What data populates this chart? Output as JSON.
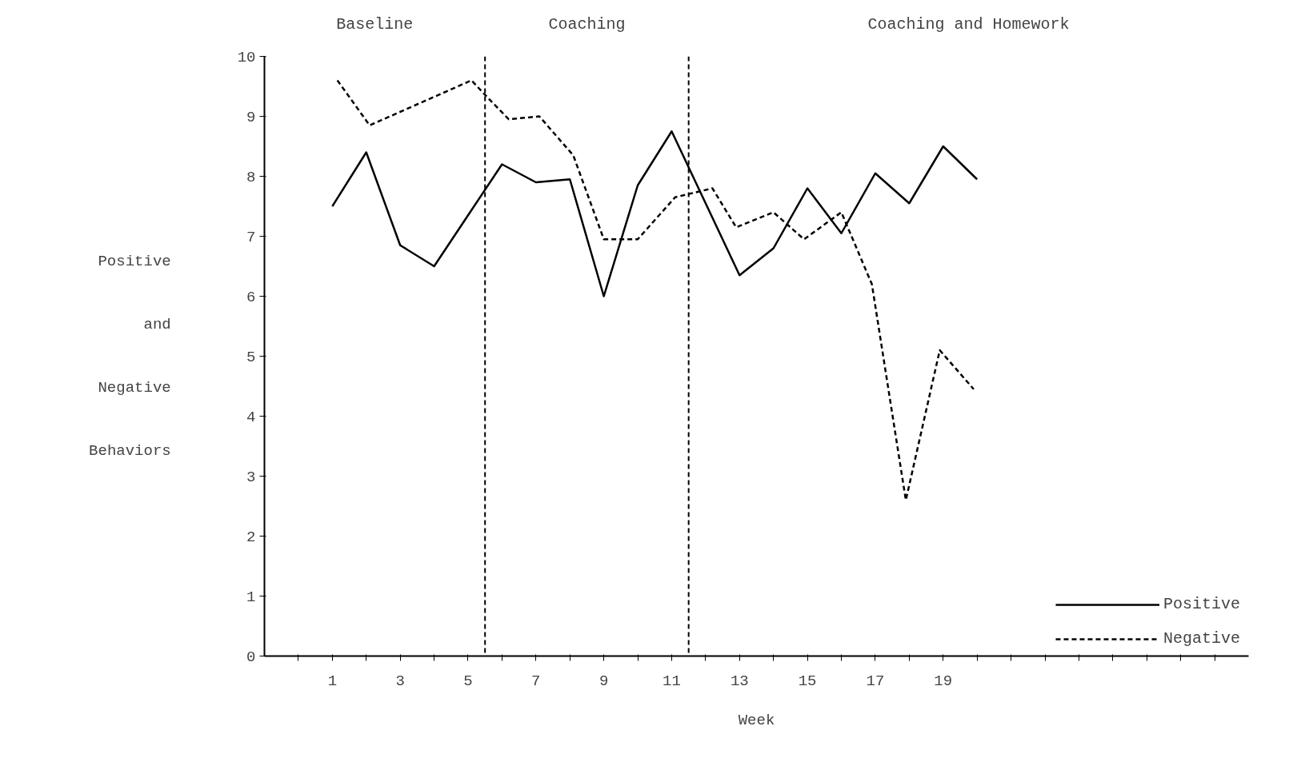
{
  "chart_data": {
    "type": "line",
    "xlabel": "Week",
    "ylabel": "Positive and Negative Behaviors",
    "annotations": [
      "Baseline",
      "Coaching",
      "Coaching and Homework"
    ],
    "xlim": [
      -1,
      28
    ],
    "ylim": [
      0,
      10
    ],
    "xticks": [
      {
        "value": 0,
        "label": null
      },
      1,
      {
        "value": 2,
        "label": null
      },
      3,
      {
        "value": 4,
        "label": null
      },
      5,
      {
        "value": 6,
        "label": null
      },
      7,
      {
        "value": 8,
        "label": null
      },
      9,
      {
        "value": 10,
        "label": null
      },
      11,
      {
        "value": 12,
        "label": null
      },
      13,
      {
        "value": 14,
        "label": null
      },
      15,
      {
        "value": 16,
        "label": null
      },
      17,
      {
        "value": 18,
        "label": null
      },
      19,
      {
        "value": 20,
        "label": null
      },
      {
        "value": 21,
        "label": null
      },
      {
        "value": 22,
        "label": null
      },
      {
        "value": 23,
        "label": null
      },
      {
        "value": 24,
        "label": null
      },
      {
        "value": 25,
        "label": null
      },
      {
        "value": 26,
        "label": null
      },
      {
        "value": 27,
        "label": null
      }
    ],
    "yticks": [
      0,
      1,
      2,
      3,
      4,
      5,
      6,
      7,
      8,
      9,
      10
    ],
    "grid": false,
    "legend": "bottom right",
    "marker": "none",
    "ref_lines": [
      {
        "axis": "x",
        "value": 5.5,
        "line_style": "dashed",
        "color": "#000000"
      },
      {
        "axis": "x",
        "value": 11.5,
        "line_style": "dashed",
        "color": "#000000"
      }
    ],
    "series": [
      {
        "name": "Positive",
        "color": "#000000",
        "line_style": "solid",
        "x": [
          1,
          2,
          3,
          4,
          5,
          6,
          7,
          8,
          9,
          10,
          11,
          12,
          13,
          14,
          15,
          16,
          17,
          18,
          19,
          20
        ],
        "values": [
          7.5,
          8.4,
          6.85,
          6.5,
          7.35,
          8.2,
          7.9,
          7.95,
          6.0,
          7.85,
          8.75,
          7.55,
          6.35,
          6.8,
          7.8,
          7.05,
          8.05,
          7.55,
          8.5,
          7.95
        ]
      },
      {
        "name": "Negative",
        "color": "#000000",
        "line_style": "dashed",
        "x": [
          1.15,
          2.1,
          5.1,
          5.6,
          6.2,
          7.1,
          8.1,
          9,
          10,
          11.1,
          12.2,
          12.9,
          14,
          14.9,
          16,
          16.9,
          17.9,
          18.9,
          19.9
        ],
        "values": [
          9.6,
          8.85,
          9.6,
          9.3,
          8.95,
          9.0,
          8.35,
          6.95,
          6.95,
          7.65,
          7.8,
          7.15,
          7.4,
          6.95,
          7.4,
          6.2,
          2.6,
          5.1,
          4.45
        ]
      }
    ]
  }
}
